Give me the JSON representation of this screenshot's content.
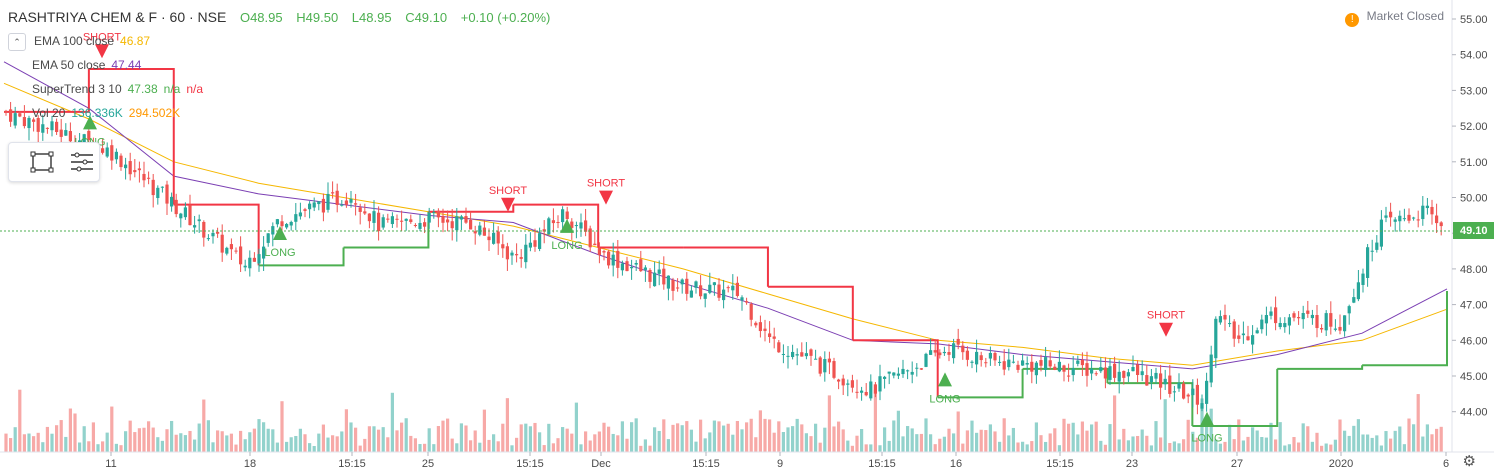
{
  "header": {
    "symbol": "RASHTRIYA CHEM & F · 60 · NSE",
    "open": "O48.95",
    "high": "H49.50",
    "low": "L48.95",
    "close": "C49.10",
    "change": "+0.10 (+0.20%)"
  },
  "market_status": "Market Closed",
  "legend": [
    {
      "name": "EMA 100 close",
      "value": "46.87",
      "color": "#f5b700"
    },
    {
      "name": "EMA 50 close",
      "value": "47.44",
      "color": "#7b3fb3"
    },
    {
      "name": "SuperTrend 3 10",
      "value": "47.38",
      "value2": "n/a",
      "value3": "n/a",
      "color": "#4caf50"
    },
    {
      "name": "Vol 20",
      "value": "136.336K",
      "value2": "294.502K",
      "color": "#26a69a"
    }
  ],
  "colors": {
    "up": "#26a69a",
    "down": "#ef5350",
    "ema100": "#f5b700",
    "ema50": "#7b3fb3",
    "st_up": "#4caf50",
    "st_down": "#f23645",
    "last_price_bg": "#4caf50"
  },
  "chart_data": {
    "type": "candlestick",
    "symbol": "RASHTRIYA CHEM & F",
    "interval": "60",
    "exchange": "NSE",
    "y_axis": {
      "ticks": [
        44.0,
        45.0,
        46.0,
        47.0,
        48.0,
        49.0,
        50.0,
        51.0,
        52.0,
        53.0,
        54.0,
        55.0
      ],
      "range": [
        43.3,
        55.3
      ],
      "side": "right"
    },
    "x_axis": {
      "ticks": [
        "11",
        "18",
        "15:15",
        "25",
        "15:15",
        "Dec",
        "15:15",
        "9",
        "15:15",
        "16",
        "15:15",
        "23",
        "27",
        "2020",
        "6"
      ]
    },
    "last_price": 49.1,
    "last_price_label": "49.10",
    "price_path": [
      {
        "x": "start",
        "close": 52.4
      },
      {
        "x": "11",
        "close": 51.3
      },
      {
        "x": "18",
        "close": 48.1
      },
      {
        "x": "18+",
        "close": 49.4
      },
      {
        "x": "15:15",
        "close": 50.1
      },
      {
        "x": "15:15+",
        "close": 49.2
      },
      {
        "x": "25",
        "close": 49.4
      },
      {
        "x": "25+",
        "close": 49.3
      },
      {
        "x": "15:15 (2)",
        "close": 48.3
      },
      {
        "x": "Dec-",
        "close": 49.6
      },
      {
        "x": "Dec",
        "close": 48.4
      },
      {
        "x": "15:15 (3)",
        "close": 47.5
      },
      {
        "x": "9-",
        "close": 47.3
      },
      {
        "x": "9",
        "close": 46.0
      },
      {
        "x": "15:15 (4)",
        "close": 44.6
      },
      {
        "x": "16",
        "close": 45.8
      },
      {
        "x": "16+",
        "close": 45.4
      },
      {
        "x": "23",
        "close": 45.1
      },
      {
        "x": "23+",
        "close": 44.3
      },
      {
        "x": "27-",
        "close": 46.8
      },
      {
        "x": "27",
        "close": 46.0
      },
      {
        "x": "27+",
        "close": 46.7
      },
      {
        "x": "2020-",
        "close": 46.5
      },
      {
        "x": "2020",
        "close": 49.2
      },
      {
        "x": "6-",
        "close": 49.6
      },
      {
        "x": "6",
        "close": 49.1
      }
    ],
    "series": [
      {
        "name": "EMA 100 close",
        "last": 46.87,
        "path": [
          53.2,
          52.2,
          51.0,
          50.4,
          50.0,
          49.6,
          49.2,
          48.6,
          48.0,
          47.3,
          46.6,
          46.0,
          45.8,
          45.5,
          45.3,
          45.7,
          46.0,
          46.87
        ]
      },
      {
        "name": "EMA 50 close",
        "last": 47.44,
        "path": [
          53.8,
          52.5,
          50.6,
          50.1,
          49.8,
          49.5,
          49.3,
          48.4,
          47.6,
          46.9,
          46.0,
          45.9,
          45.6,
          45.4,
          45.2,
          45.6,
          46.2,
          47.44
        ]
      },
      {
        "name": "SuperTrend 3 10",
        "last": 47.38,
        "path": [
          52.4,
          53.6,
          49.8,
          48.1,
          48.6,
          49.6,
          49.8,
          48.6,
          48.6,
          47.5,
          46.0,
          44.4,
          45.2,
          44.8,
          43.6,
          45.2,
          45.3,
          47.38
        ]
      }
    ],
    "signals": [
      {
        "label": "LONG",
        "x": "11-",
        "direction": "up"
      },
      {
        "label": "SHORT",
        "x": "11-",
        "direction": "down"
      },
      {
        "label": "LONG",
        "x": "18+",
        "direction": "up"
      },
      {
        "label": "SHORT",
        "x": "15:15 (2)",
        "direction": "down"
      },
      {
        "label": "LONG",
        "x": "Dec-",
        "direction": "up"
      },
      {
        "label": "SHORT",
        "x": "Dec",
        "direction": "down"
      },
      {
        "label": "LONG",
        "x": "16",
        "direction": "up"
      },
      {
        "label": "SHORT",
        "x": "23+",
        "direction": "down"
      },
      {
        "label": "LONG",
        "x": "27-",
        "direction": "up"
      }
    ],
    "volume": {
      "last": "136.336K",
      "avg": "294.502K"
    },
    "grid": false,
    "legend_position": "top-left"
  }
}
